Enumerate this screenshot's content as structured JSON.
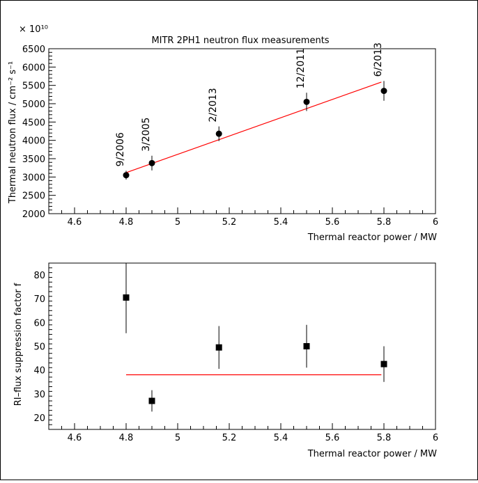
{
  "chart_data": [
    {
      "type": "scatter",
      "title": "MITR 2PH1 neutron flux measurements",
      "xlabel": "Thermal reactor power / MW",
      "ylabel": "Thermal neutron flux / cm⁻² s⁻¹",
      "y_multiplier": "× 10¹⁰",
      "xlim": [
        4.5,
        6.0
      ],
      "ylim": [
        2000,
        6500
      ],
      "x_ticks": [
        4.6,
        4.8,
        5,
        5.2,
        5.4,
        5.6,
        5.8,
        6
      ],
      "x_tick_labels": [
        "4.6",
        "4.8",
        "5",
        "5.2",
        "5.4",
        "5.6",
        "5.8",
        "6"
      ],
      "y_ticks": [
        2000,
        2500,
        3000,
        3500,
        4000,
        4500,
        5000,
        5500,
        6000,
        6500
      ],
      "y_tick_labels": [
        "2000",
        "2500",
        "3000",
        "3500",
        "4000",
        "4500",
        "5000",
        "5500",
        "6000",
        "6500"
      ],
      "marker": "circle",
      "points": [
        {
          "x": 4.8,
          "y": 3050,
          "err": 120,
          "label": "9/2006"
        },
        {
          "x": 4.9,
          "y": 3380,
          "err": 200,
          "label": "3/2005"
        },
        {
          "x": 5.16,
          "y": 4180,
          "err": 200,
          "label": "2/2013"
        },
        {
          "x": 5.5,
          "y": 5050,
          "err": 250,
          "label": "12/2011"
        },
        {
          "x": 5.8,
          "y": 5350,
          "err": 270,
          "label": "6/2013"
        }
      ],
      "fit_line": {
        "x": [
          4.8,
          5.79
        ],
        "y": [
          3120,
          5590
        ],
        "color": "#ff0000"
      },
      "grid": false
    },
    {
      "type": "scatter",
      "title": "",
      "xlabel": "Thermal reactor power / MW",
      "ylabel": "RI–flux suppression factor f",
      "xlim": [
        4.5,
        6.0
      ],
      "ylim": [
        15,
        85
      ],
      "x_ticks": [
        4.6,
        4.8,
        5,
        5.2,
        5.4,
        5.6,
        5.8,
        6
      ],
      "x_tick_labels": [
        "4.6",
        "4.8",
        "5",
        "5.2",
        "5.4",
        "5.6",
        "5.8",
        "6"
      ],
      "y_ticks": [
        20,
        30,
        40,
        50,
        60,
        70,
        80
      ],
      "y_tick_labels": [
        "20",
        "30",
        "40",
        "50",
        "60",
        "70",
        "80"
      ],
      "marker": "square",
      "points": [
        {
          "x": 4.8,
          "y": 70.5,
          "err_low": 15,
          "err_high": 15
        },
        {
          "x": 4.9,
          "y": 27,
          "err_low": 4.5,
          "err_high": 4.5
        },
        {
          "x": 5.16,
          "y": 49.5,
          "err_low": 9,
          "err_high": 9
        },
        {
          "x": 5.5,
          "y": 50,
          "err_low": 9,
          "err_high": 9
        },
        {
          "x": 5.8,
          "y": 42.5,
          "err_low": 7.5,
          "err_high": 7.5
        }
      ],
      "fit_line": {
        "x": [
          4.8,
          5.79
        ],
        "y": [
          38,
          38
        ],
        "color": "#ff0000"
      },
      "grid": false
    }
  ]
}
